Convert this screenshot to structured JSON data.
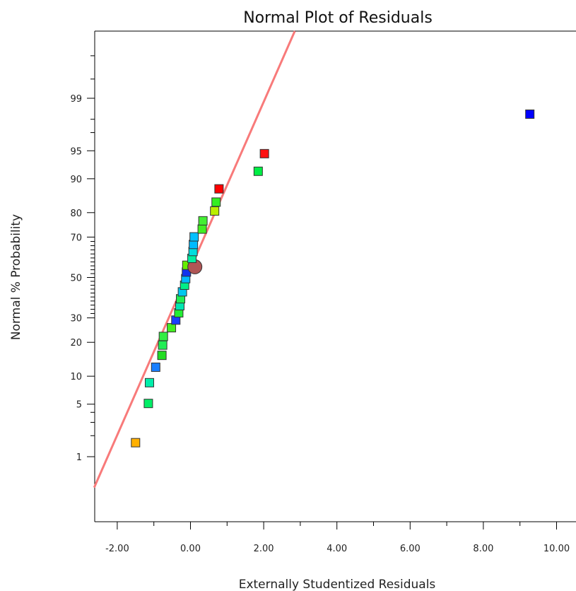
{
  "chart_data": {
    "type": "scatter",
    "title": "Normal Plot of Residuals",
    "xlabel": "Externally Studentized Residuals",
    "ylabel": "Normal % Probability",
    "xlim": [
      -2.6,
      10.5
    ],
    "x_ticks": [
      "-2.00",
      "0.00",
      "2.00",
      "4.00",
      "6.00",
      "8.00",
      "10.00"
    ],
    "x_tick_values": [
      -2,
      0,
      2,
      4,
      6,
      8,
      10
    ],
    "y_scale": "normal-probability",
    "ylim": [
      0.2,
      99.9
    ],
    "y_ticks": [
      "1",
      "5",
      "10",
      "20",
      "30",
      "50",
      "70",
      "80",
      "90",
      "95",
      "99"
    ],
    "y_tick_values": [
      1,
      5,
      10,
      20,
      30,
      50,
      70,
      80,
      90,
      95,
      99
    ],
    "y_minor_values": [
      2,
      3,
      4,
      32,
      34,
      36,
      38,
      40,
      42,
      44,
      46,
      48,
      52,
      54,
      56,
      58,
      60,
      62,
      64,
      66,
      68,
      97,
      98,
      99.5,
      99.8
    ],
    "fit_line": {
      "color": "#f87a7a",
      "x": [
        -2.63,
        2.85
      ],
      "y": [
        0.32,
        99.8
      ]
    },
    "grid": false,
    "points": [
      {
        "x": -1.5,
        "y": 1.6,
        "color": "#ffb000",
        "shape": "square"
      },
      {
        "x": -1.15,
        "y": 5.1,
        "color": "#00ee66",
        "shape": "square"
      },
      {
        "x": -1.12,
        "y": 8.6,
        "color": "#00eeaa",
        "shape": "square"
      },
      {
        "x": -0.95,
        "y": 12.2,
        "color": "#1a7fff",
        "shape": "square"
      },
      {
        "x": -0.78,
        "y": 15.6,
        "color": "#22dd22",
        "shape": "square"
      },
      {
        "x": -0.76,
        "y": 19.0,
        "color": "#22ee55",
        "shape": "square"
      },
      {
        "x": -0.74,
        "y": 22.2,
        "color": "#33ee44",
        "shape": "square"
      },
      {
        "x": -0.52,
        "y": 25.7,
        "color": "#44ee22",
        "shape": "square"
      },
      {
        "x": -0.4,
        "y": 29.0,
        "color": "#1a3fff",
        "shape": "square"
      },
      {
        "x": -0.32,
        "y": 32.3,
        "color": "#22ee33",
        "shape": "square"
      },
      {
        "x": -0.29,
        "y": 35.7,
        "color": "#00e8b0",
        "shape": "square"
      },
      {
        "x": -0.27,
        "y": 39.1,
        "color": "#22ee55",
        "shape": "square"
      },
      {
        "x": -0.22,
        "y": 42.6,
        "color": "#00c8ee",
        "shape": "square"
      },
      {
        "x": -0.16,
        "y": 46.0,
        "color": "#00ee88",
        "shape": "square"
      },
      {
        "x": -0.13,
        "y": 49.4,
        "color": "#00b8ff",
        "shape": "square"
      },
      {
        "x": -0.11,
        "y": 52.8,
        "color": "#1133ee",
        "shape": "square"
      },
      {
        "x": -0.1,
        "y": 56.3,
        "color": "#66ee00",
        "shape": "square"
      },
      {
        "x": 0.12,
        "y": 55.5,
        "color": "#b05555",
        "shape": "circle"
      },
      {
        "x": 0.04,
        "y": 59.8,
        "color": "#00eea0",
        "shape": "square"
      },
      {
        "x": 0.07,
        "y": 63.2,
        "color": "#00dddd",
        "shape": "square"
      },
      {
        "x": 0.08,
        "y": 66.6,
        "color": "#00bbff",
        "shape": "square"
      },
      {
        "x": 0.1,
        "y": 70.1,
        "color": "#00c0ff",
        "shape": "square"
      },
      {
        "x": 0.32,
        "y": 73.5,
        "color": "#44ee22",
        "shape": "square"
      },
      {
        "x": 0.34,
        "y": 76.9,
        "color": "#44ee33",
        "shape": "square"
      },
      {
        "x": 0.66,
        "y": 80.6,
        "color": "#bbee00",
        "shape": "square"
      },
      {
        "x": 0.7,
        "y": 83.6,
        "color": "#33ee22",
        "shape": "square"
      },
      {
        "x": 0.78,
        "y": 87.5,
        "color": "#ff0000",
        "shape": "square"
      },
      {
        "x": 1.85,
        "y": 91.6,
        "color": "#00ee44",
        "shape": "square"
      },
      {
        "x": 2.02,
        "y": 94.6,
        "color": "#ff1111",
        "shape": "square"
      },
      {
        "x": 9.27,
        "y": 98.3,
        "color": "#0000ff",
        "shape": "square"
      }
    ]
  }
}
